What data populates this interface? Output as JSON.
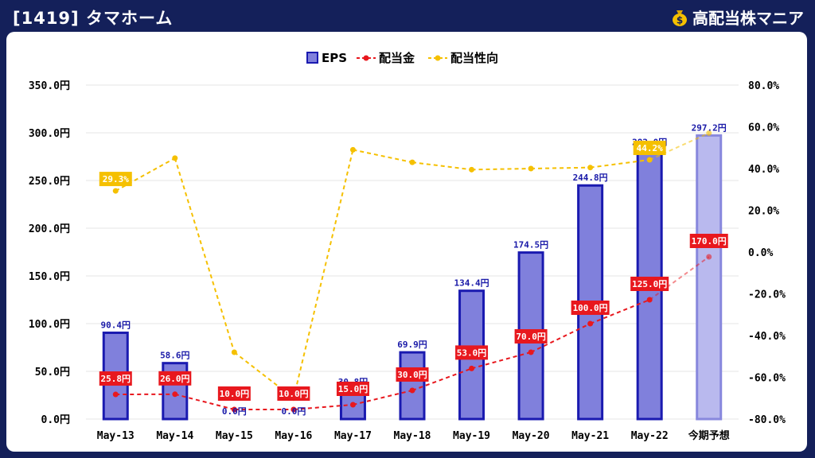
{
  "header": {
    "title": "[1419] タマホーム",
    "brand": "高配当株マニア",
    "bag_glyph": "$"
  },
  "colors": {
    "background": "#14205a",
    "eps_bar": "#8080dc",
    "eps_bar_border": "#1a1ab0",
    "eps_forecast_bar": "#b9b9ee",
    "dividend": "#e8181e",
    "payout": "#f5c000",
    "payout_label_bg": "#f5c000"
  },
  "chart_data": {
    "type": "bar",
    "categories": [
      "May-13",
      "May-14",
      "May-15",
      "May-16",
      "May-17",
      "May-18",
      "May-19",
      "May-20",
      "May-21",
      "May-22",
      "今期予想"
    ],
    "legend": [
      "EPS",
      "配当金",
      "配当性向"
    ],
    "legend_position": "top-center",
    "grid": true,
    "y_left": {
      "ylim": [
        0,
        350
      ],
      "ticks": [
        "0.0円",
        "50.0円",
        "100.0円",
        "150.0円",
        "200.0円",
        "250.0円",
        "300.0円",
        "350.0円"
      ]
    },
    "y_right": {
      "ylim": [
        -80,
        80
      ],
      "ticks": [
        "-80.0%",
        "-60.0%",
        "-40.0%",
        "-20.0%",
        "0.0%",
        "20.0%",
        "40.0%",
        "60.0%",
        "80.0%"
      ]
    },
    "series": [
      {
        "name": "EPS",
        "type": "bar",
        "axis": "left",
        "values": [
          90.4,
          58.6,
          0.0,
          0.0,
          30.8,
          69.9,
          134.4,
          174.5,
          244.8,
          282.0,
          297.2
        ],
        "labels": [
          "90.4円",
          "58.6円",
          "0.0円",
          "0.0円",
          "30.8円",
          "69.9円",
          "134.4円",
          "174.5円",
          "244.8円",
          "282.0円",
          "297.2円"
        ]
      },
      {
        "name": "配当金",
        "type": "line",
        "axis": "left",
        "values": [
          25.8,
          26.0,
          10.0,
          10.0,
          15.0,
          30.0,
          53.0,
          70.0,
          100.0,
          125.0,
          170.0
        ],
        "labels": [
          "25.8円",
          "26.0円",
          "10.0円",
          "10.0円",
          "15.0円",
          "30.0円",
          "53.0円",
          "70.0円",
          "100.0円",
          "125.0円",
          "170.0円"
        ]
      },
      {
        "name": "配当性向",
        "type": "line",
        "axis": "right",
        "values": [
          29.3,
          45.0,
          -48.0,
          -70.0,
          49.0,
          43.0,
          39.5,
          40.0,
          40.5,
          44.2,
          57.0
        ],
        "labels": [
          "29.3%",
          "",
          "",
          "",
          "",
          "",
          "",
          "",
          "",
          "44.2%",
          ""
        ]
      }
    ]
  }
}
